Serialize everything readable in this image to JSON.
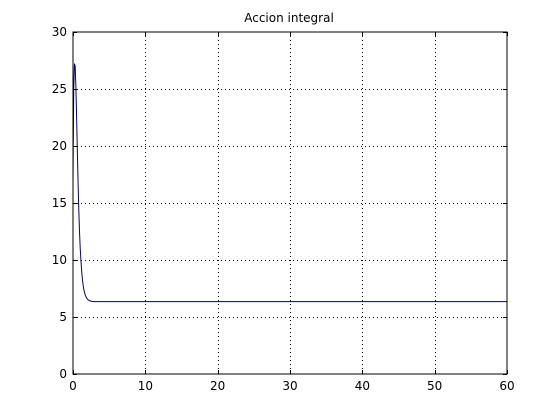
{
  "chart_data": {
    "type": "line",
    "title": "Accion integral",
    "xlabel": "",
    "ylabel": "",
    "xlim": [
      0,
      60
    ],
    "ylim": [
      0,
      30
    ],
    "xticks": [
      0,
      10,
      20,
      30,
      40,
      50,
      60
    ],
    "yticks": [
      0,
      5,
      10,
      15,
      20,
      25,
      30
    ],
    "grid": true,
    "grid_style": "dotted",
    "line_color": "#00007f",
    "series": [
      {
        "x": [
          0,
          0.1,
          0.2,
          0.3,
          0.4,
          0.5,
          0.6,
          0.7,
          0.8,
          0.9,
          1.0,
          1.1,
          1.2,
          1.3,
          1.4,
          1.5,
          1.7,
          1.9,
          2.1,
          2.4,
          2.8,
          3.5,
          5,
          10,
          20,
          30,
          40,
          50,
          60
        ],
        "y": [
          16.7,
          25.0,
          27.2,
          27.0,
          25.2,
          22.5,
          19.6,
          16.8,
          14.4,
          12.5,
          11.0,
          9.9,
          9.0,
          8.3,
          7.8,
          7.4,
          6.9,
          6.65,
          6.5,
          6.4,
          6.35,
          6.35,
          6.35,
          6.35,
          6.35,
          6.35,
          6.35,
          6.35,
          6.35
        ]
      }
    ]
  }
}
